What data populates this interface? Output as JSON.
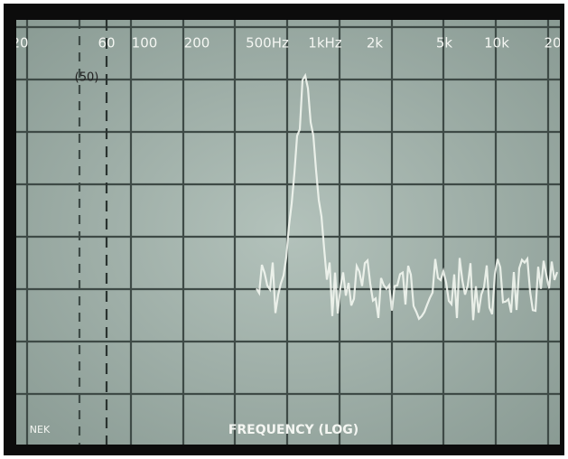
{
  "screen": {
    "scale_labels": [
      "20",
      "60",
      "100",
      "200",
      "500Hz",
      "1kHz",
      "2k",
      "5k",
      "10k",
      "20"
    ],
    "marker_label": "(50)",
    "axis_caption": "FREQUENCY (LOG)",
    "corner_label": "NEK"
  }
}
